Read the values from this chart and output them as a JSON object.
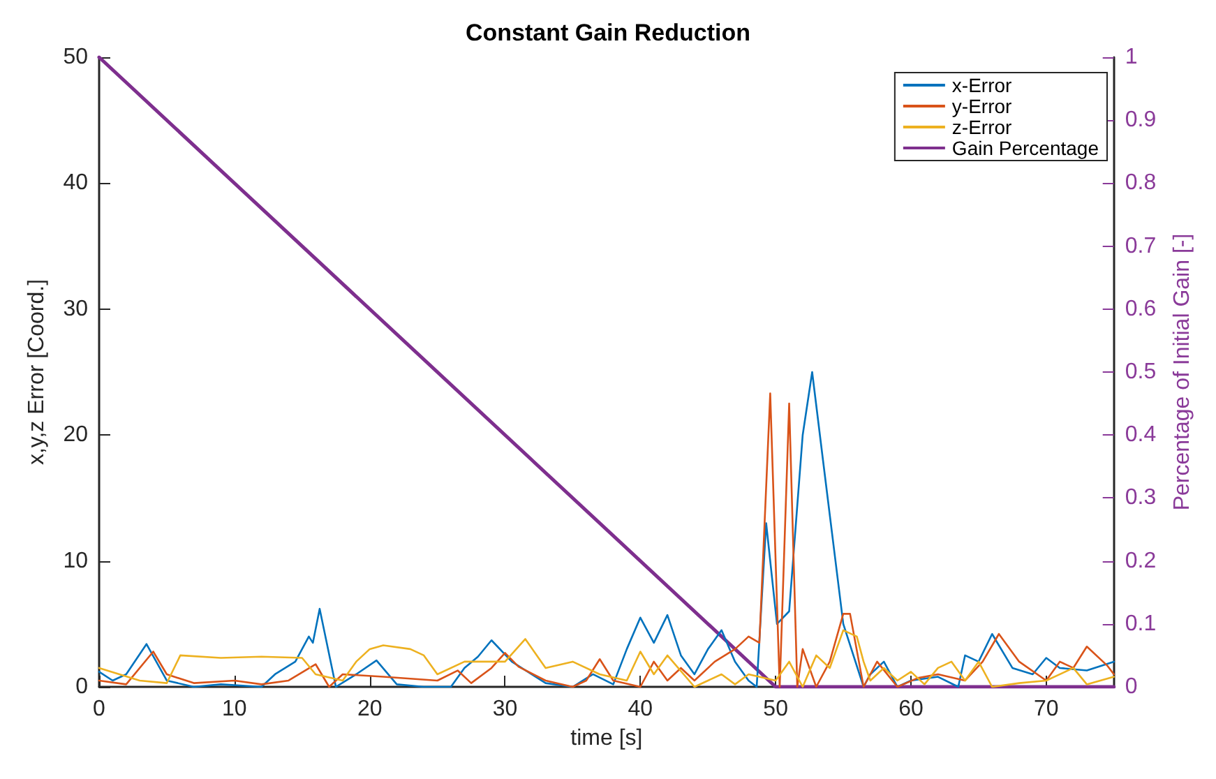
{
  "chart_data": {
    "type": "line",
    "title": "Constant Gain Reduction",
    "xlabel": "time [s]",
    "ylabel": "x,y,z Error [Coord.]",
    "y2label": "Percentage of Initial Gain [-]",
    "xlim": [
      0,
      75
    ],
    "xticks": [
      0,
      10,
      20,
      30,
      40,
      50,
      60,
      70
    ],
    "ylim": [
      0,
      50
    ],
    "yticks": [
      0,
      10,
      20,
      30,
      40,
      50
    ],
    "y2lim": [
      0,
      1
    ],
    "y2ticks": [
      0,
      0.1,
      0.2,
      0.3,
      0.4,
      0.5,
      0.6,
      0.7,
      0.8,
      0.9,
      1
    ],
    "grid": false,
    "legend": "top right",
    "marker": "none",
    "line_style": "solid",
    "series": [
      {
        "name": "x-Error",
        "color": "#0072bd",
        "x": [
          0,
          1,
          2,
          3.5,
          5,
          7,
          9,
          12,
          13,
          14.5,
          15.5,
          15.8,
          16.3,
          17.5,
          19,
          20.5,
          22,
          24,
          26,
          27,
          28,
          29,
          30.5,
          33,
          35,
          36.5,
          38,
          39,
          40,
          41,
          42,
          43,
          44,
          45,
          46,
          47,
          48,
          48.6,
          49.3,
          50.1,
          51,
          52,
          52.7,
          53.5,
          55,
          56.5,
          57,
          58,
          59,
          60,
          62,
          63.5,
          64,
          65,
          66,
          67.5,
          69,
          70,
          71,
          73,
          75
        ],
        "values": [
          1.2,
          0.5,
          1,
          3.4,
          0.5,
          0,
          0.2,
          0,
          1,
          2,
          4,
          3.5,
          6.2,
          0,
          1,
          2.1,
          0.2,
          0,
          0,
          1.5,
          2.4,
          3.7,
          2,
          0.3,
          0,
          1,
          0.2,
          3,
          5.5,
          3.5,
          5.7,
          2.5,
          1,
          3,
          4.5,
          2,
          0.5,
          0,
          13,
          5,
          6,
          20,
          25,
          18,
          5,
          0,
          1,
          2,
          0,
          0.5,
          0.8,
          0,
          2.5,
          2,
          4.2,
          1.5,
          1,
          2.3,
          1.5,
          1.3,
          2
        ]
      },
      {
        "name": "y-Error",
        "color": "#d95319",
        "x": [
          0,
          2,
          4,
          5,
          7,
          10,
          12,
          14,
          16,
          17,
          18,
          21,
          25,
          26.5,
          27.5,
          29,
          30,
          31,
          33,
          35,
          36,
          37,
          38,
          40,
          41,
          42,
          43,
          44,
          45.5,
          47,
          48,
          48.8,
          49.6,
          50.3,
          51,
          51.6,
          52,
          53,
          54,
          55,
          55.5,
          56.5,
          57.5,
          59,
          60.5,
          62,
          64,
          65.3,
          66.5,
          68,
          70,
          71,
          72,
          73,
          74.5,
          75
        ],
        "values": [
          0.5,
          0.2,
          2.8,
          1,
          0.3,
          0.5,
          0.2,
          0.5,
          1.8,
          0,
          1,
          0.8,
          0.5,
          1.3,
          0.3,
          1.5,
          2.7,
          1.6,
          0.5,
          0,
          0.5,
          2.2,
          0.5,
          0,
          2,
          0.5,
          1.5,
          0.5,
          2,
          3,
          4,
          3.5,
          23.3,
          0,
          22.5,
          0,
          3,
          0,
          2,
          5.8,
          5.8,
          0,
          2,
          0,
          0.7,
          1,
          0.5,
          2,
          4.2,
          2,
          0.5,
          2,
          1.5,
          3.2,
          1.7,
          1
        ]
      },
      {
        "name": "z-Error",
        "color": "#edb120",
        "x": [
          0,
          3,
          5,
          6,
          9,
          12,
          15,
          16,
          18,
          19,
          20,
          21,
          23,
          24,
          25,
          27,
          30,
          31.5,
          33,
          35,
          37,
          39,
          40,
          41,
          42,
          44,
          46,
          47,
          48,
          50,
          51,
          52,
          53,
          54,
          55,
          56,
          56.5,
          57,
          58,
          59,
          60,
          61,
          62,
          63,
          64,
          65,
          66,
          68,
          70,
          72,
          73,
          75
        ],
        "values": [
          1.5,
          0.5,
          0.3,
          2.5,
          2.3,
          2.4,
          2.3,
          1,
          0.5,
          2,
          3,
          3.3,
          3,
          2.5,
          1,
          2,
          2,
          3.8,
          1.5,
          2,
          1,
          0.5,
          2.8,
          1,
          2.5,
          0,
          1,
          0.2,
          1,
          0.5,
          2,
          0,
          2.5,
          1.5,
          4.5,
          4,
          2,
          0.5,
          1.5,
          0.5,
          1.2,
          0.2,
          1.5,
          2,
          0.5,
          2,
          0,
          0.3,
          0.5,
          1.5,
          0.2,
          0.8
        ]
      },
      {
        "name": "Gain Percentage",
        "color": "#7e2f8e",
        "axis": "y2",
        "x": [
          0,
          50,
          75
        ],
        "values": [
          1,
          0,
          0
        ]
      }
    ]
  }
}
